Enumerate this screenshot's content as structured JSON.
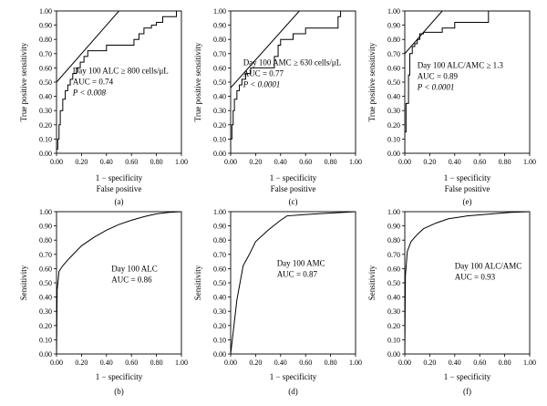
{
  "chart_data": [
    {
      "type": "line",
      "panel_label": "(a)",
      "ylabel": "True positive sensitivity",
      "xlabel": "1 − specificity",
      "xlabel2": "False positive",
      "xlim": [
        0,
        1
      ],
      "ylim": [
        0,
        1
      ],
      "xticks": [
        "0.00",
        "0.20",
        "0.40",
        "0.60",
        "0.80",
        "1.00"
      ],
      "yticks": [
        "0.00",
        "0.10",
        "0.20",
        "0.30",
        "0.40",
        "0.50",
        "0.60",
        "0.70",
        "0.80",
        "0.90",
        "1.00"
      ],
      "annotation": [
        "Day 100 ALC ≥ 800 cells/μL",
        "AUC = 0.74",
        "P < 0.008"
      ],
      "series": [
        {
          "style": "step",
          "x": [
            0,
            0,
            0.01,
            0.01,
            0.02,
            0.02,
            0.03,
            0.03,
            0.05,
            0.05,
            0.07,
            0.07,
            0.09,
            0.09,
            0.11,
            0.11,
            0.13,
            0.13,
            0.16,
            0.16,
            0.19,
            0.19,
            0.22,
            0.22,
            0.25,
            0.25,
            0.4,
            0.4,
            0.62,
            0.62,
            0.66,
            0.66,
            0.7,
            0.7,
            0.76,
            0.76,
            0.8,
            0.8,
            0.85,
            0.85,
            0.96,
            0.96,
            1.0
          ],
          "y": [
            0,
            0.03,
            0.03,
            0.1,
            0.1,
            0.2,
            0.2,
            0.3,
            0.3,
            0.38,
            0.38,
            0.44,
            0.44,
            0.48,
            0.48,
            0.52,
            0.52,
            0.56,
            0.56,
            0.6,
            0.6,
            0.64,
            0.64,
            0.68,
            0.68,
            0.72,
            0.72,
            0.76,
            0.76,
            0.8,
            0.8,
            0.84,
            0.84,
            0.88,
            0.88,
            0.9,
            0.9,
            0.92,
            0.92,
            0.96,
            0.96,
            1.0,
            1.0
          ]
        },
        {
          "style": "reference",
          "x": [
            0,
            0.5
          ],
          "y": [
            0.5,
            1.0
          ]
        }
      ]
    },
    {
      "type": "line",
      "panel_label": "(c)",
      "ylabel": "True positive sensitivity",
      "xlabel": "1 − specificity",
      "xlabel2": "False positive",
      "xlim": [
        0,
        1
      ],
      "ylim": [
        0,
        1
      ],
      "xticks": [
        "0.00",
        "0.20",
        "0.40",
        "0.60",
        "0.80",
        "1.00"
      ],
      "yticks": [
        "0.00",
        "0.10",
        "0.20",
        "0.30",
        "0.40",
        "0.50",
        "0.60",
        "0.70",
        "0.80",
        "0.90",
        "1.00"
      ],
      "annotation": [
        "Day 100 AMC ≥ 630 cells/μL",
        "AUC = 0.77",
        "P < 0.0001"
      ],
      "series": [
        {
          "style": "step",
          "x": [
            0,
            0,
            0.01,
            0.01,
            0.02,
            0.02,
            0.03,
            0.03,
            0.05,
            0.05,
            0.07,
            0.07,
            0.09,
            0.09,
            0.12,
            0.12,
            0.16,
            0.16,
            0.35,
            0.35,
            0.38,
            0.38,
            0.4,
            0.4,
            0.5,
            0.5,
            0.6,
            0.6,
            0.86,
            0.86,
            0.88,
            0.88,
            1.0
          ],
          "y": [
            0,
            0.1,
            0.1,
            0.2,
            0.2,
            0.3,
            0.3,
            0.38,
            0.38,
            0.44,
            0.44,
            0.48,
            0.48,
            0.52,
            0.52,
            0.56,
            0.56,
            0.6,
            0.6,
            0.68,
            0.68,
            0.76,
            0.76,
            0.8,
            0.8,
            0.84,
            0.84,
            0.88,
            0.88,
            0.96,
            0.96,
            1.0,
            1.0
          ]
        },
        {
          "style": "reference",
          "x": [
            0,
            0.55
          ],
          "y": [
            0.46,
            1.0
          ]
        }
      ]
    },
    {
      "type": "line",
      "panel_label": "(e)",
      "ylabel": "True positive sensitivity",
      "xlabel": "1 − specificity",
      "xlabel2": "False positive",
      "xlim": [
        0,
        1
      ],
      "ylim": [
        0,
        1
      ],
      "xticks": [
        "0.00",
        "0.20",
        "0.40",
        "0.60",
        "0.80",
        "1.00"
      ],
      "yticks": [
        "0.00",
        "0.10",
        "0.20",
        "0.30",
        "0.40",
        "0.50",
        "0.60",
        "0.70",
        "0.80",
        "0.90",
        "1.00"
      ],
      "annotation": [
        "Day 100 ALC/AMC ≥ 1.3",
        "AUC = 0.89",
        "P < 0.0001"
      ],
      "series": [
        {
          "style": "step",
          "x": [
            0,
            0,
            0.01,
            0.01,
            0.03,
            0.03,
            0.04,
            0.04,
            0.06,
            0.06,
            0.08,
            0.08,
            0.1,
            0.1,
            0.12,
            0.12,
            0.15,
            0.15,
            0.3,
            0.3,
            0.4,
            0.4,
            0.67,
            0.67,
            1.0
          ],
          "y": [
            0,
            0.15,
            0.15,
            0.35,
            0.35,
            0.55,
            0.55,
            0.7,
            0.7,
            0.75,
            0.75,
            0.77,
            0.77,
            0.8,
            0.8,
            0.84,
            0.84,
            0.85,
            0.85,
            0.88,
            0.88,
            0.92,
            0.92,
            1.0,
            1.0
          ]
        },
        {
          "style": "reference",
          "x": [
            0,
            0.3
          ],
          "y": [
            0.7,
            1.0
          ]
        }
      ]
    },
    {
      "type": "line",
      "panel_label": "(b)",
      "ylabel": "Sensitivity",
      "xlabel": "1 − specificity",
      "xlim": [
        0,
        1
      ],
      "ylim": [
        0,
        1
      ],
      "xticks": [
        "0.00",
        "0.20",
        "0.40",
        "0.60",
        "0.80",
        "1.00"
      ],
      "yticks": [
        "0.00",
        "0.10",
        "0.20",
        "0.30",
        "0.40",
        "0.50",
        "0.60",
        "0.70",
        "0.80",
        "0.90",
        "1.00"
      ],
      "annotation": [
        "Day 100 ALC",
        "AUC = 0.86"
      ],
      "series": [
        {
          "style": "curve",
          "x": [
            0,
            0.005,
            0.02,
            0.05,
            0.1,
            0.2,
            0.3,
            0.4,
            0.5,
            0.6,
            0.7,
            0.8,
            0.9,
            1.0
          ],
          "y": [
            0,
            0.45,
            0.58,
            0.62,
            0.67,
            0.76,
            0.82,
            0.87,
            0.91,
            0.94,
            0.965,
            0.985,
            0.995,
            1.0
          ]
        }
      ]
    },
    {
      "type": "line",
      "panel_label": "(d)",
      "ylabel": "Sensitivity",
      "xlabel": "1 − specificity",
      "xlim": [
        0,
        1
      ],
      "ylim": [
        0,
        1
      ],
      "xticks": [
        "0.00",
        "0.20",
        "0.40",
        "0.60",
        "0.80",
        "1.00"
      ],
      "yticks": [
        "0.00",
        "0.10",
        "0.20",
        "0.30",
        "0.40",
        "0.50",
        "0.60",
        "0.70",
        "0.80",
        "0.90",
        "1.00"
      ],
      "annotation": [
        "Day 100 AMC",
        "AUC = 0.87"
      ],
      "series": [
        {
          "style": "curve",
          "x": [
            0,
            0.05,
            0.1,
            0.15,
            0.2,
            0.3,
            0.4,
            0.45,
            0.6,
            0.8,
            1.0
          ],
          "y": [
            0,
            0.38,
            0.62,
            0.7,
            0.79,
            0.87,
            0.94,
            0.97,
            0.98,
            0.99,
            1.0
          ]
        }
      ]
    },
    {
      "type": "line",
      "panel_label": "(f)",
      "ylabel": "Sensitivity",
      "xlabel": "1 − specificity",
      "xlim": [
        0,
        1
      ],
      "ylim": [
        0,
        1
      ],
      "xticks": [
        "0.00",
        "0.20",
        "0.40",
        "0.60",
        "0.80",
        "1.00"
      ],
      "yticks": [
        "0.00",
        "0.10",
        "0.20",
        "0.30",
        "0.40",
        "0.50",
        "0.60",
        "0.70",
        "0.80",
        "0.90",
        "1.00"
      ],
      "annotation": [
        "Day 100 ALC/AMC",
        "AUC = 0.93"
      ],
      "series": [
        {
          "style": "curve",
          "x": [
            0,
            0.005,
            0.02,
            0.05,
            0.1,
            0.15,
            0.25,
            0.35,
            0.5,
            0.7,
            0.85,
            1.0
          ],
          "y": [
            0,
            0.55,
            0.72,
            0.79,
            0.84,
            0.88,
            0.92,
            0.95,
            0.97,
            0.985,
            0.995,
            1.0
          ]
        }
      ]
    }
  ]
}
